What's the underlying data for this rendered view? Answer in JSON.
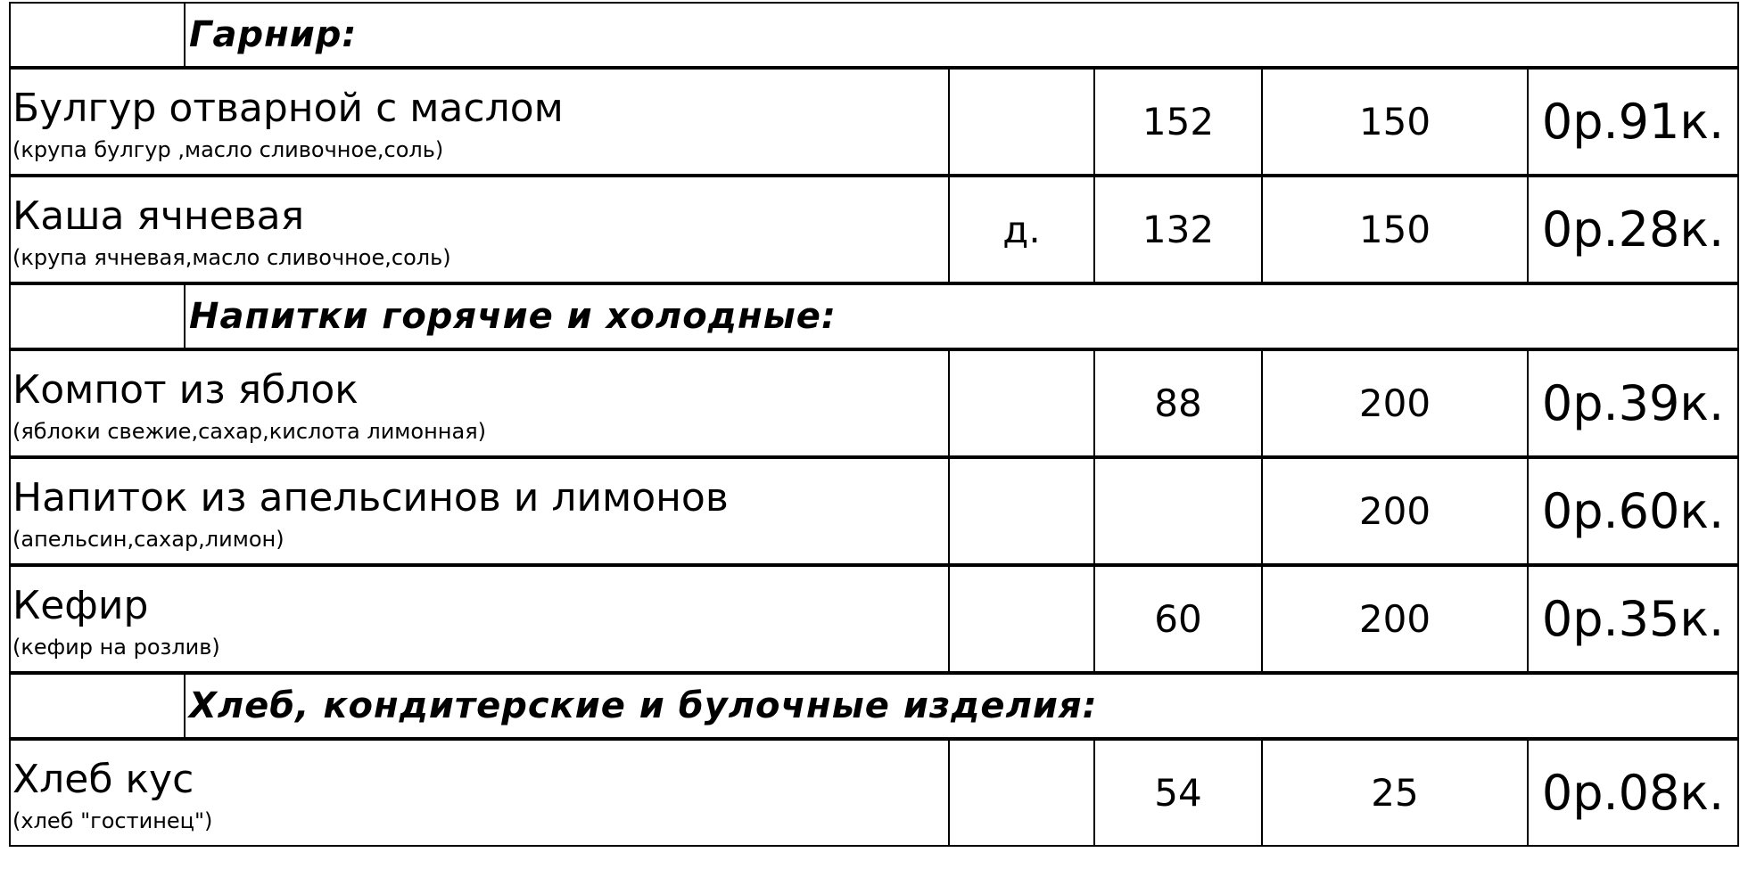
{
  "sections": [
    {
      "title": "Гарнир:",
      "items": [
        {
          "name": "Булгур отварной с маслом",
          "ingredients": "(крупа булгур ,масло сливочное,соль)",
          "mark": "",
          "calories": "152",
          "weight": "150",
          "price": "0р.91к."
        },
        {
          "name": "Каша ячневая",
          "ingredients": "(крупа ячневая,масло сливочное,соль)",
          "mark": "д.",
          "calories": "132",
          "weight": "150",
          "price": "0р.28к."
        }
      ]
    },
    {
      "title": "Напитки горячие и холодные:",
      "items": [
        {
          "name": "Компот из яблок",
          "ingredients": "(яблоки свежие,сахар,кислота лимонная)",
          "mark": "",
          "calories": "88",
          "weight": "200",
          "price": "0р.39к."
        },
        {
          "name": "Напиток из апельсинов и лимонов",
          "ingredients": "(апельсин,сахар,лимон)",
          "mark": "",
          "calories": "",
          "weight": "200",
          "price": "0р.60к."
        },
        {
          "name": "Кефир",
          "ingredients": "(кефир на розлив)",
          "mark": "",
          "calories": "60",
          "weight": "200",
          "price": "0р.35к."
        }
      ]
    },
    {
      "title": "Хлеб, кондитерские и булочные изделия:",
      "items": [
        {
          "name": "Хлеб кус",
          "ingredients": "(хлеб \"гостинец\")",
          "mark": "",
          "calories": "54",
          "weight": "25",
          "price": "0р.08к."
        }
      ]
    }
  ]
}
